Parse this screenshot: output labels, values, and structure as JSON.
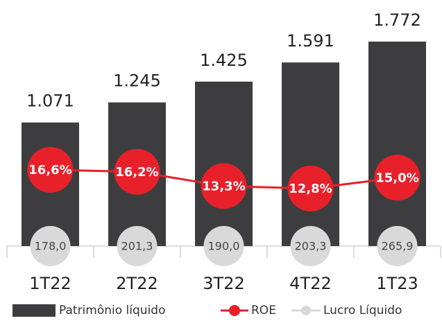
{
  "chart_data": {
    "type": "bar",
    "categories": [
      "1T22",
      "2T22",
      "3T22",
      "4T22",
      "1T23"
    ],
    "series": [
      {
        "name": "Patrimônio líquido",
        "type": "bar",
        "color": "#3d3d3f",
        "values": [
          1071,
          1245,
          1425,
          1591,
          1772
        ],
        "value_labels": [
          "1.071",
          "1.245",
          "1.425",
          "1.591",
          "1.772"
        ]
      },
      {
        "name": "ROE",
        "type": "line",
        "color": "#e8202a",
        "values": [
          16.6,
          16.2,
          13.3,
          12.8,
          15.0
        ],
        "value_labels": [
          "16,6%",
          "16,2%",
          "13,3%",
          "12,8%",
          "15,0%"
        ]
      },
      {
        "name": "Lucro Líquido",
        "type": "scatter",
        "color": "#d9d9d9",
        "values": [
          178.0,
          201.3,
          190.0,
          203.3,
          265.9
        ],
        "value_labels": [
          "178,0",
          "201,3",
          "190,0",
          "203,3",
          "265,9"
        ]
      }
    ]
  }
}
